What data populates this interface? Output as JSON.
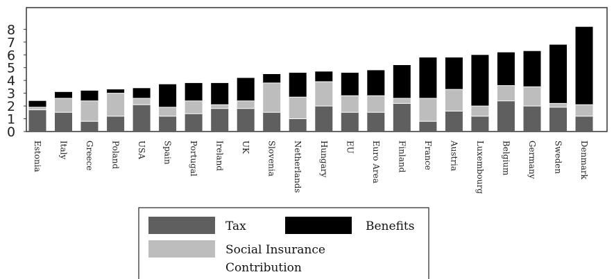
{
  "chart_data": {
    "type": "bar",
    "stacked": true,
    "categories": [
      "Estonia",
      "Italy",
      "Greece",
      "Poland",
      "USA",
      "Spain",
      "Portugal",
      "Ireland",
      "UK",
      "Slovenia",
      "Netherlands",
      "Hungary",
      "EU",
      "Euro Area",
      "Finland",
      "France",
      "Austria",
      "Luxembourg",
      "Belgium",
      "Germany",
      "Sweden",
      "Denmark"
    ],
    "series": [
      {
        "name": "Tax",
        "color": "#5f5f5f",
        "values": [
          1.7,
          1.5,
          0.8,
          1.2,
          2.1,
          1.2,
          1.4,
          1.8,
          1.8,
          1.5,
          1.0,
          2.0,
          1.5,
          1.5,
          2.2,
          0.8,
          1.6,
          1.2,
          2.4,
          2.0,
          1.9,
          1.2
        ]
      },
      {
        "name": "Social Insurance Contribution",
        "color": "#bdbdbd",
        "values": [
          0.2,
          1.1,
          1.6,
          1.8,
          0.5,
          0.7,
          1.0,
          0.3,
          0.6,
          2.3,
          1.7,
          1.9,
          1.3,
          1.3,
          0.4,
          1.8,
          1.7,
          0.8,
          1.2,
          1.5,
          0.3,
          0.9
        ]
      },
      {
        "name": "Benefits",
        "color": "#000000",
        "values": [
          0.5,
          0.5,
          0.8,
          0.3,
          0.8,
          1.8,
          1.4,
          1.7,
          1.8,
          0.7,
          1.9,
          0.8,
          1.8,
          2.0,
          2.6,
          3.2,
          2.5,
          4.0,
          2.6,
          2.8,
          4.6,
          6.1
        ]
      }
    ],
    "yticks": [
      0,
      1,
      2,
      3,
      4,
      5,
      6,
      7,
      8
    ],
    "ylim": [
      0,
      9.7
    ],
    "grid": false,
    "legend": {
      "placement": "below",
      "entries": [
        {
          "label": "Tax",
          "series": 0
        },
        {
          "label": "Benefits",
          "series": 2
        },
        {
          "label_line1": "Social Insurance",
          "label_line2": "Contribution",
          "series": 1
        }
      ]
    }
  }
}
